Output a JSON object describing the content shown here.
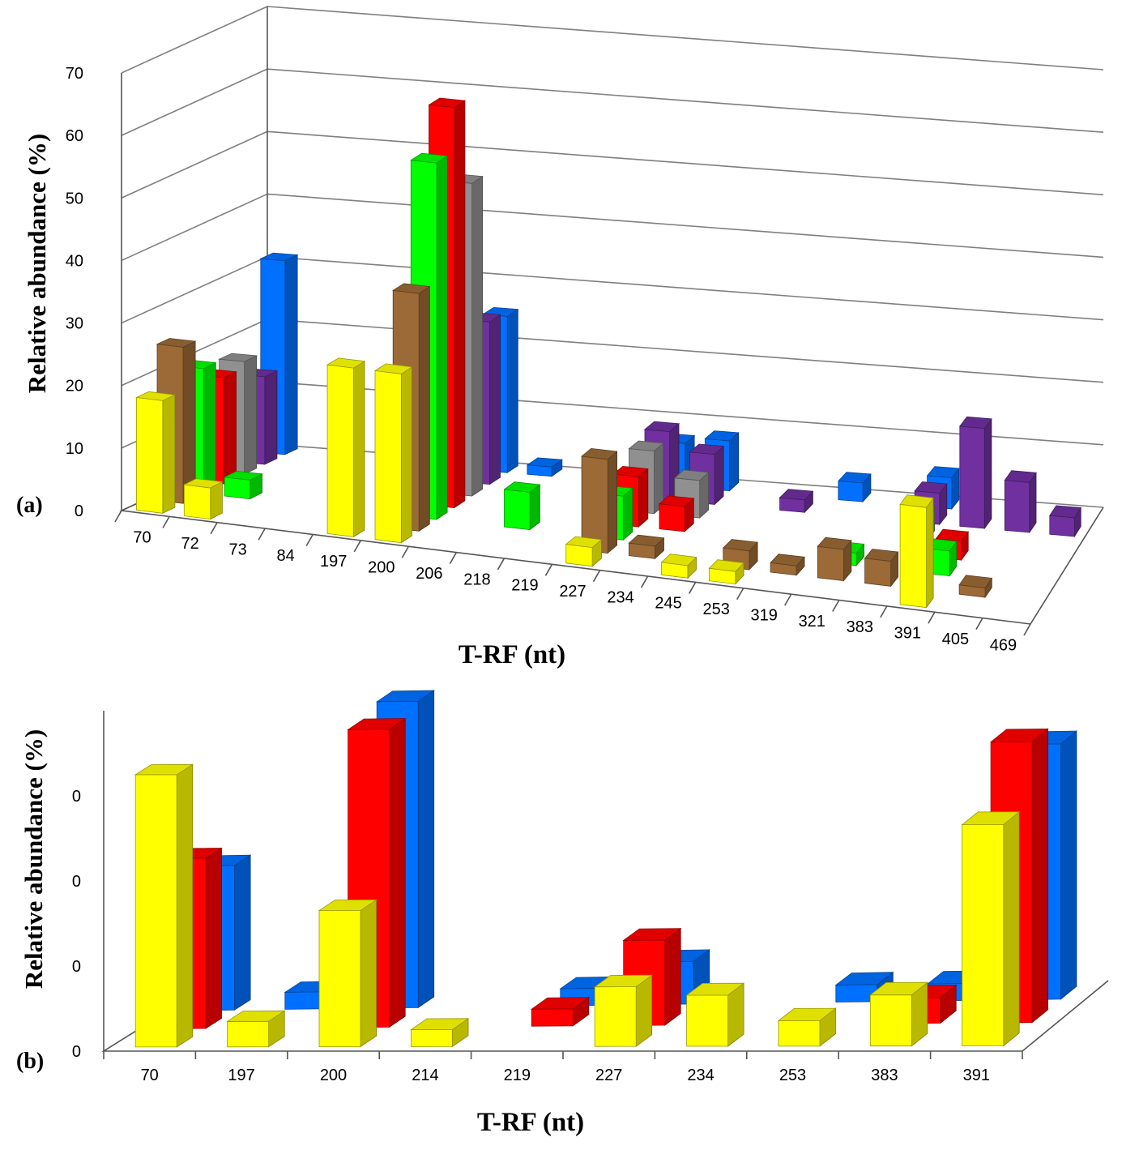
{
  "chart_data": [
    {
      "panel_label": "(a)",
      "type": "bar",
      "xlabel": "T-RF (nt)",
      "ylabel": "Relative abundance (%)",
      "ylim": [
        0,
        70
      ],
      "yticks": [
        "0",
        "10",
        "20",
        "30",
        "40",
        "50",
        "60",
        "70"
      ],
      "categories": [
        "70",
        "72",
        "73",
        "84",
        "197",
        "200",
        "206",
        "218",
        "219",
        "227",
        "234",
        "245",
        "253",
        "319",
        "321",
        "383",
        "391",
        "405",
        "469"
      ],
      "series": [
        {
          "color": "#ffff00",
          "values": [
            18,
            5,
            0,
            0,
            27,
            27,
            0,
            0,
            0,
            3,
            0,
            2,
            2,
            0,
            0,
            0,
            16,
            0,
            0
          ]
        },
        {
          "color": "#9b6a36",
          "values": [
            25,
            0,
            0,
            0,
            0,
            38,
            0,
            0,
            0,
            15,
            2,
            0,
            3,
            1.5,
            5,
            4,
            0,
            1.5,
            0
          ]
        },
        {
          "color": "#00ff00",
          "values": [
            20,
            3,
            0,
            0,
            0,
            57,
            0,
            6,
            0,
            7,
            0,
            0,
            0,
            0,
            2,
            0,
            4,
            0,
            0
          ]
        },
        {
          "color": "#ff0000",
          "values": [
            17,
            0,
            0,
            0,
            0,
            64,
            0,
            0,
            0,
            8,
            4,
            0,
            0,
            0,
            0,
            0,
            3,
            0,
            0
          ]
        },
        {
          "color": "#909090",
          "values": [
            18,
            0,
            0,
            0,
            0,
            50,
            0,
            0,
            0,
            10,
            6,
            0,
            0,
            0,
            0,
            4,
            0,
            0,
            0
          ]
        },
        {
          "color": "#7030a0",
          "values": [
            14,
            0,
            0,
            0,
            0,
            26,
            0,
            0,
            0,
            11,
            8,
            0,
            2,
            0,
            0,
            5,
            16,
            8,
            3
          ]
        },
        {
          "color": "#0070ff",
          "values": [
            31,
            0,
            0,
            0,
            0,
            25,
            1.5,
            0,
            0,
            7,
            8,
            0,
            0,
            3,
            0,
            5,
            0,
            0,
            0
          ]
        }
      ]
    },
    {
      "panel_label": "(b)",
      "type": "bar",
      "xlabel": "T-RF (nt)",
      "ylabel": "Relative abundance (%)",
      "ylim": [
        0,
        40
      ],
      "yticks": [
        "0",
        "0",
        "0",
        "0"
      ],
      "categories": [
        "70",
        "197",
        "200",
        "214",
        "219",
        "227",
        "234",
        "253",
        "383",
        "391"
      ],
      "series": [
        {
          "color": "#ffff00",
          "values": [
            32,
            3,
            16,
            2,
            0,
            7,
            6,
            3,
            6,
            26
          ]
        },
        {
          "color": "#ff0000",
          "values": [
            20,
            0,
            35,
            0,
            2,
            10,
            0,
            0,
            3,
            33
          ]
        },
        {
          "color": "#0070ff",
          "values": [
            17,
            2,
            36,
            0,
            2,
            5,
            0,
            2,
            2,
            30
          ]
        }
      ]
    }
  ]
}
